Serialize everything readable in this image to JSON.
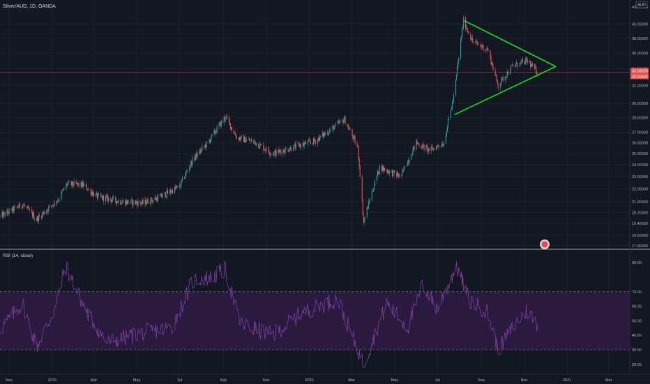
{
  "header": {
    "symbol_line": "Silver/AUD, 1D, OANDA"
  },
  "currency": "AUD",
  "rsi": {
    "label": "RSI (14, close)",
    "ticks": [
      "90.00",
      "70.00",
      "60.00",
      "50.00",
      "40.00",
      "30.00",
      "20.00"
    ],
    "tick_values": [
      90,
      70,
      60,
      50,
      40,
      30,
      20
    ],
    "upper_band": 70,
    "lower_band": 30
  },
  "price_ticks": [
    "40.00000",
    "38.00000",
    "36.00000",
    "34.00000",
    "32.00000",
    "30.00000",
    "28.50000",
    "27.00000",
    "26.00000",
    "25.00000",
    "24.00000",
    "23.00000",
    "22.00000",
    "21.00000",
    "20.20000",
    "19.40000",
    "18.60000",
    "17.90000"
  ],
  "price_tick_values": [
    40,
    38,
    36,
    34,
    32,
    30,
    28.5,
    27,
    26,
    25,
    24,
    23,
    22,
    21,
    20.2,
    19.4,
    18.6,
    17.9
  ],
  "price_top_label": "43.00000",
  "current_price": {
    "label1": "33.59639",
    "label2": "33.63535",
    "value": 33.6
  },
  "time_labels": [
    "Nov",
    "2019",
    "Mar",
    "May",
    "Jul",
    "Sep",
    "Nov",
    "2020",
    "Mar",
    "May",
    "Jul",
    "Sep",
    "Nov",
    "2021",
    "Mar"
  ],
  "colors": {
    "background": "#131722",
    "up": "#26a69a",
    "down": "#ef5350",
    "trendline": "#00ff1a",
    "rsi_line": "#7e3fa0",
    "rsi_band_fill": "#2a1a3e",
    "price_line": "#ef5350",
    "text": "#b2b5be"
  },
  "chart_data": {
    "type": "candlestick",
    "title": "Silver/AUD, 1D, OANDA",
    "y_unit": "AUD",
    "y_scale": "log",
    "ylim": [
      17.9,
      43.0
    ],
    "x_range": [
      "2018-10-19",
      "2021-03-31"
    ],
    "price_path": [
      {
        "date": "2018-10-19",
        "close": 19.9
      },
      {
        "date": "2018-11-20",
        "close": 20.8
      },
      {
        "date": "2018-12-10",
        "close": 19.7
      },
      {
        "date": "2019-01-10",
        "close": 21.2
      },
      {
        "date": "2019-01-22",
        "close": 22.4
      },
      {
        "date": "2019-02-15",
        "close": 22.3
      },
      {
        "date": "2019-03-05",
        "close": 21.4
      },
      {
        "date": "2019-04-10",
        "close": 21.0
      },
      {
        "date": "2019-05-10",
        "close": 20.9
      },
      {
        "date": "2019-06-05",
        "close": 21.4
      },
      {
        "date": "2019-07-01",
        "close": 22.2
      },
      {
        "date": "2019-07-20",
        "close": 24.5
      },
      {
        "date": "2019-08-10",
        "close": 26.0
      },
      {
        "date": "2019-09-04",
        "close": 28.6
      },
      {
        "date": "2019-09-20",
        "close": 26.5
      },
      {
        "date": "2019-10-15",
        "close": 26.1
      },
      {
        "date": "2019-11-10",
        "close": 25.0
      },
      {
        "date": "2019-12-10",
        "close": 25.6
      },
      {
        "date": "2020-01-10",
        "close": 26.2
      },
      {
        "date": "2020-02-20",
        "close": 28.3
      },
      {
        "date": "2020-03-10",
        "close": 25.5
      },
      {
        "date": "2020-03-18",
        "close": 19.5
      },
      {
        "date": "2020-04-10",
        "close": 23.8
      },
      {
        "date": "2020-05-10",
        "close": 23.0
      },
      {
        "date": "2020-06-01",
        "close": 26.0
      },
      {
        "date": "2020-06-20",
        "close": 25.3
      },
      {
        "date": "2020-07-10",
        "close": 26.0
      },
      {
        "date": "2020-07-25",
        "close": 31.0
      },
      {
        "date": "2020-08-07",
        "close": 40.5
      },
      {
        "date": "2020-08-20",
        "close": 37.5
      },
      {
        "date": "2020-09-10",
        "close": 36.5
      },
      {
        "date": "2020-09-25",
        "close": 32.0
      },
      {
        "date": "2020-10-15",
        "close": 34.3
      },
      {
        "date": "2020-11-05",
        "close": 35.0
      },
      {
        "date": "2020-11-20",
        "close": 33.6
      }
    ],
    "triangle": {
      "upper_line": [
        {
          "date": "2020-08-08",
          "price": 40.5
        },
        {
          "date": "2020-12-16",
          "price": 34.3
        }
      ],
      "lower_line": [
        {
          "date": "2020-07-25",
          "price": 28.8
        },
        {
          "date": "2020-12-16",
          "price": 34.3
        }
      ]
    },
    "rsi_path": [
      {
        "date": "2018-10-19",
        "rsi": 44
      },
      {
        "date": "2018-11-20",
        "rsi": 62
      },
      {
        "date": "2018-12-10",
        "rsi": 32
      },
      {
        "date": "2019-01-05",
        "rsi": 58
      },
      {
        "date": "2019-01-20",
        "rsi": 88
      },
      {
        "date": "2019-02-20",
        "rsi": 55
      },
      {
        "date": "2019-03-20",
        "rsi": 35
      },
      {
        "date": "2019-05-10",
        "rsi": 42
      },
      {
        "date": "2019-06-20",
        "rsi": 45
      },
      {
        "date": "2019-07-20",
        "rsi": 78
      },
      {
        "date": "2019-08-15",
        "rsi": 80
      },
      {
        "date": "2019-09-04",
        "rsi": 85
      },
      {
        "date": "2019-09-25",
        "rsi": 48
      },
      {
        "date": "2019-11-10",
        "rsi": 40
      },
      {
        "date": "2019-12-20",
        "rsi": 55
      },
      {
        "date": "2020-02-10",
        "rsi": 65
      },
      {
        "date": "2020-03-18",
        "rsi": 20
      },
      {
        "date": "2020-04-20",
        "rsi": 62
      },
      {
        "date": "2020-05-20",
        "rsi": 45
      },
      {
        "date": "2020-06-10",
        "rsi": 75
      },
      {
        "date": "2020-07-01",
        "rsi": 58
      },
      {
        "date": "2020-07-28",
        "rsi": 88
      },
      {
        "date": "2020-08-15",
        "rsi": 64
      },
      {
        "date": "2020-09-10",
        "rsi": 56
      },
      {
        "date": "2020-09-25",
        "rsi": 30
      },
      {
        "date": "2020-10-20",
        "rsi": 48
      },
      {
        "date": "2020-11-05",
        "rsi": 57
      },
      {
        "date": "2020-11-20",
        "rsi": 48
      }
    ],
    "rsi_ylim": [
      17,
      92
    ]
  }
}
